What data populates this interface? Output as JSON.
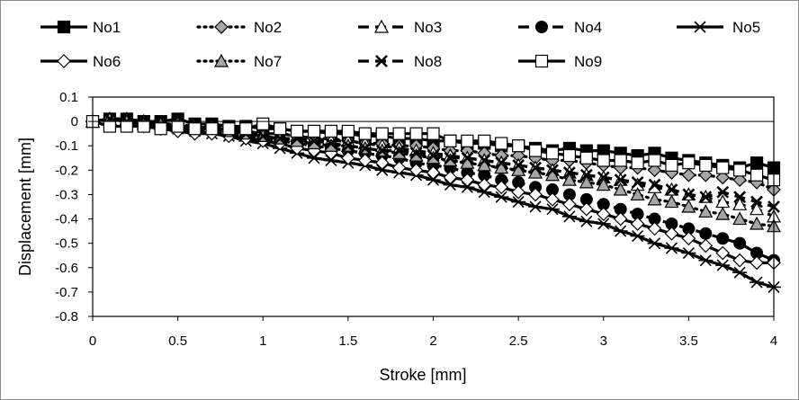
{
  "chart_data": {
    "type": "line",
    "xlabel": "Stroke [mm]",
    "ylabel": "Displacement [mm]",
    "xlim": [
      0,
      4
    ],
    "ylim": [
      -0.8,
      0.1
    ],
    "xticks": [
      "0",
      "0.5",
      "1",
      "1.5",
      "2",
      "2.5",
      "3",
      "3.5",
      "4"
    ],
    "yticks": [
      "0.1",
      "0",
      "-0.1",
      "-0.2",
      "-0.3",
      "-0.4",
      "-0.5",
      "-0.6",
      "-0.7",
      "-0.8"
    ],
    "grid": false,
    "legend_position": "top",
    "series": [
      {
        "name": "No1",
        "marker": "square",
        "fill": "#000000",
        "dash": "solid",
        "x": [
          0,
          0.1,
          0.2,
          0.3,
          0.4,
          0.5,
          0.6,
          0.7,
          0.8,
          0.9,
          1.0,
          1.1,
          1.2,
          1.3,
          1.4,
          1.5,
          1.6,
          1.7,
          1.8,
          1.9,
          2.0,
          2.1,
          2.2,
          2.3,
          2.4,
          2.5,
          2.6,
          2.7,
          2.8,
          2.9,
          3.0,
          3.1,
          3.2,
          3.3,
          3.4,
          3.5,
          3.6,
          3.7,
          3.8,
          3.9,
          4.0
        ],
        "y": [
          0,
          0.01,
          0.01,
          0,
          0,
          0.01,
          -0.01,
          -0.01,
          -0.02,
          -0.02,
          -0.03,
          -0.03,
          -0.04,
          -0.04,
          -0.05,
          -0.05,
          -0.06,
          -0.06,
          -0.07,
          -0.07,
          -0.08,
          -0.08,
          -0.09,
          -0.09,
          -0.1,
          -0.1,
          -0.11,
          -0.12,
          -0.11,
          -0.12,
          -0.12,
          -0.13,
          -0.14,
          -0.13,
          -0.15,
          -0.16,
          -0.17,
          -0.18,
          -0.19,
          -0.17,
          -0.19
        ]
      },
      {
        "name": "No2",
        "marker": "diamond",
        "fill": "#a6a6a6",
        "dash": "dot",
        "x": [
          0,
          0.1,
          0.2,
          0.3,
          0.4,
          0.5,
          0.6,
          0.7,
          0.8,
          0.9,
          1.0,
          1.1,
          1.2,
          1.3,
          1.4,
          1.5,
          1.6,
          1.7,
          1.8,
          1.9,
          2.0,
          2.1,
          2.2,
          2.3,
          2.4,
          2.5,
          2.6,
          2.7,
          2.8,
          2.9,
          3.0,
          3.1,
          3.2,
          3.3,
          3.4,
          3.5,
          3.6,
          3.7,
          3.8,
          3.9,
          4.0
        ],
        "y": [
          0,
          0.01,
          0.01,
          0,
          -0.01,
          -0.01,
          -0.02,
          -0.02,
          -0.03,
          -0.04,
          -0.05,
          -0.05,
          -0.06,
          -0.07,
          -0.07,
          -0.08,
          -0.09,
          -0.09,
          -0.1,
          -0.1,
          -0.11,
          -0.12,
          -0.12,
          -0.13,
          -0.14,
          -0.14,
          -0.15,
          -0.16,
          -0.16,
          -0.17,
          -0.18,
          -0.19,
          -0.19,
          -0.2,
          -0.21,
          -0.22,
          -0.22,
          -0.23,
          -0.24,
          -0.25,
          -0.28
        ]
      },
      {
        "name": "No3",
        "marker": "triangle",
        "fill": "#ffffff",
        "dash": "dash",
        "x": [
          0,
          0.1,
          0.2,
          0.3,
          0.4,
          0.5,
          0.6,
          0.7,
          0.8,
          0.9,
          1.0,
          1.1,
          1.2,
          1.3,
          1.4,
          1.5,
          1.6,
          1.7,
          1.8,
          1.9,
          2.0,
          2.1,
          2.2,
          2.3,
          2.4,
          2.5,
          2.6,
          2.7,
          2.8,
          2.9,
          3.0,
          3.1,
          3.2,
          3.3,
          3.4,
          3.5,
          3.6,
          3.7,
          3.8,
          3.9,
          4.0
        ],
        "y": [
          0,
          0.01,
          0.01,
          0,
          -0.01,
          -0.02,
          -0.02,
          -0.03,
          -0.03,
          -0.04,
          -0.05,
          -0.05,
          -0.06,
          -0.07,
          -0.08,
          -0.08,
          -0.09,
          -0.1,
          -0.11,
          -0.12,
          -0.13,
          -0.14,
          -0.15,
          -0.16,
          -0.17,
          -0.18,
          -0.19,
          -0.2,
          -0.21,
          -0.22,
          -0.23,
          -0.24,
          -0.26,
          -0.27,
          -0.28,
          -0.3,
          -0.31,
          -0.33,
          -0.34,
          -0.36,
          -0.39
        ]
      },
      {
        "name": "No4",
        "marker": "circle",
        "fill": "#000000",
        "dash": "dash",
        "x": [
          0,
          0.1,
          0.2,
          0.3,
          0.4,
          0.5,
          0.6,
          0.7,
          0.8,
          0.9,
          1.0,
          1.1,
          1.2,
          1.3,
          1.4,
          1.5,
          1.6,
          1.7,
          1.8,
          1.9,
          2.0,
          2.1,
          2.2,
          2.3,
          2.4,
          2.5,
          2.6,
          2.7,
          2.8,
          2.9,
          3.0,
          3.1,
          3.2,
          3.3,
          3.4,
          3.5,
          3.6,
          3.7,
          3.8,
          3.9,
          4.0
        ],
        "y": [
          0,
          0.01,
          0,
          -0.01,
          -0.02,
          -0.03,
          -0.03,
          -0.04,
          -0.05,
          -0.06,
          -0.07,
          -0.08,
          -0.09,
          -0.1,
          -0.11,
          -0.12,
          -0.13,
          -0.14,
          -0.15,
          -0.17,
          -0.18,
          -0.19,
          -0.21,
          -0.22,
          -0.24,
          -0.25,
          -0.27,
          -0.28,
          -0.3,
          -0.32,
          -0.34,
          -0.36,
          -0.38,
          -0.4,
          -0.42,
          -0.44,
          -0.46,
          -0.48,
          -0.5,
          -0.54,
          -0.57
        ]
      },
      {
        "name": "No5",
        "marker": "asterisk",
        "fill": "#000000",
        "dash": "solid",
        "x": [
          0,
          0.1,
          0.2,
          0.3,
          0.4,
          0.5,
          0.6,
          0.7,
          0.8,
          0.9,
          1.0,
          1.1,
          1.2,
          1.3,
          1.4,
          1.5,
          1.6,
          1.7,
          1.8,
          1.9,
          2.0,
          2.1,
          2.2,
          2.3,
          2.4,
          2.5,
          2.6,
          2.7,
          2.8,
          2.9,
          3.0,
          3.1,
          3.2,
          3.3,
          3.4,
          3.5,
          3.6,
          3.7,
          3.8,
          3.9,
          4.0
        ],
        "y": [
          0,
          0.01,
          0,
          -0.01,
          -0.02,
          -0.03,
          -0.04,
          -0.05,
          -0.06,
          -0.08,
          -0.09,
          -0.11,
          -0.13,
          -0.15,
          -0.16,
          -0.17,
          -0.18,
          -0.2,
          -0.21,
          -0.22,
          -0.24,
          -0.26,
          -0.27,
          -0.29,
          -0.31,
          -0.33,
          -0.35,
          -0.36,
          -0.39,
          -0.41,
          -0.42,
          -0.45,
          -0.47,
          -0.5,
          -0.52,
          -0.54,
          -0.57,
          -0.59,
          -0.62,
          -0.66,
          -0.68
        ]
      },
      {
        "name": "No6",
        "marker": "diamond",
        "fill": "#ffffff",
        "dash": "solid",
        "x": [
          0,
          0.1,
          0.2,
          0.3,
          0.4,
          0.5,
          0.6,
          0.7,
          0.8,
          0.9,
          1.0,
          1.1,
          1.2,
          1.3,
          1.4,
          1.5,
          1.6,
          1.7,
          1.8,
          1.9,
          2.0,
          2.1,
          2.2,
          2.3,
          2.4,
          2.5,
          2.6,
          2.7,
          2.8,
          2.9,
          3.0,
          3.1,
          3.2,
          3.3,
          3.4,
          3.5,
          3.6,
          3.7,
          3.8,
          3.9,
          4.0
        ],
        "y": [
          0,
          0.01,
          0,
          -0.02,
          -0.03,
          -0.04,
          -0.05,
          -0.05,
          -0.06,
          -0.07,
          -0.08,
          -0.09,
          -0.11,
          -0.12,
          -0.13,
          -0.15,
          -0.16,
          -0.17,
          -0.19,
          -0.2,
          -0.21,
          -0.23,
          -0.24,
          -0.26,
          -0.27,
          -0.29,
          -0.3,
          -0.32,
          -0.34,
          -0.36,
          -0.38,
          -0.4,
          -0.42,
          -0.44,
          -0.46,
          -0.48,
          -0.51,
          -0.54,
          -0.57,
          -0.58,
          -0.58
        ]
      },
      {
        "name": "No7",
        "marker": "triangle",
        "fill": "#a6a6a6",
        "dash": "dot",
        "x": [
          0,
          0.1,
          0.2,
          0.3,
          0.4,
          0.5,
          0.6,
          0.7,
          0.8,
          0.9,
          1.0,
          1.1,
          1.2,
          1.3,
          1.4,
          1.5,
          1.6,
          1.7,
          1.8,
          1.9,
          2.0,
          2.1,
          2.2,
          2.3,
          2.4,
          2.5,
          2.6,
          2.7,
          2.8,
          2.9,
          3.0,
          3.1,
          3.2,
          3.3,
          3.4,
          3.5,
          3.6,
          3.7,
          3.8,
          3.9,
          4.0
        ],
        "y": [
          0,
          0.01,
          0,
          -0.01,
          -0.01,
          -0.02,
          -0.03,
          -0.03,
          -0.04,
          -0.05,
          -0.06,
          -0.07,
          -0.08,
          -0.09,
          -0.1,
          -0.1,
          -0.11,
          -0.12,
          -0.13,
          -0.14,
          -0.15,
          -0.16,
          -0.17,
          -0.18,
          -0.19,
          -0.2,
          -0.21,
          -0.22,
          -0.24,
          -0.25,
          -0.26,
          -0.28,
          -0.3,
          -0.32,
          -0.33,
          -0.35,
          -0.37,
          -0.38,
          -0.4,
          -0.42,
          -0.43
        ]
      },
      {
        "name": "No8",
        "marker": "cross",
        "fill": "#000000",
        "dash": "dash",
        "x": [
          0,
          0.1,
          0.2,
          0.3,
          0.4,
          0.5,
          0.6,
          0.7,
          0.8,
          0.9,
          1.0,
          1.1,
          1.2,
          1.3,
          1.4,
          1.5,
          1.6,
          1.7,
          1.8,
          1.9,
          2.0,
          2.1,
          2.2,
          2.3,
          2.4,
          2.5,
          2.6,
          2.7,
          2.8,
          2.9,
          3.0,
          3.1,
          3.2,
          3.3,
          3.4,
          3.5,
          3.6,
          3.7,
          3.8,
          3.9,
          4.0
        ],
        "y": [
          0,
          0.01,
          0,
          -0.01,
          -0.02,
          -0.02,
          -0.03,
          -0.03,
          -0.04,
          -0.05,
          -0.06,
          -0.07,
          -0.07,
          -0.08,
          -0.09,
          -0.1,
          -0.11,
          -0.12,
          -0.12,
          -0.13,
          -0.14,
          -0.15,
          -0.15,
          -0.16,
          -0.17,
          -0.18,
          -0.19,
          -0.2,
          -0.21,
          -0.22,
          -0.23,
          -0.24,
          -0.25,
          -0.26,
          -0.28,
          -0.3,
          -0.31,
          -0.29,
          -0.31,
          -0.33,
          -0.35
        ]
      },
      {
        "name": "No9",
        "marker": "square",
        "fill": "#ffffff",
        "dash": "solid",
        "x": [
          0,
          0.1,
          0.2,
          0.3,
          0.4,
          0.5,
          0.6,
          0.7,
          0.8,
          0.9,
          1.0,
          1.1,
          1.2,
          1.3,
          1.4,
          1.5,
          1.6,
          1.7,
          1.8,
          1.9,
          2.0,
          2.1,
          2.2,
          2.3,
          2.4,
          2.5,
          2.6,
          2.7,
          2.8,
          2.9,
          3.0,
          3.1,
          3.2,
          3.3,
          3.4,
          3.5,
          3.6,
          3.7,
          3.8,
          3.9,
          4.0
        ],
        "y": [
          0,
          -0.02,
          -0.02,
          -0.02,
          -0.03,
          -0.02,
          -0.03,
          -0.03,
          -0.03,
          -0.03,
          -0.01,
          -0.03,
          -0.04,
          -0.04,
          -0.04,
          -0.04,
          -0.05,
          -0.05,
          -0.05,
          -0.05,
          -0.05,
          -0.08,
          -0.08,
          -0.08,
          -0.09,
          -0.1,
          -0.12,
          -0.13,
          -0.14,
          -0.15,
          -0.16,
          -0.16,
          -0.17,
          -0.16,
          -0.18,
          -0.17,
          -0.18,
          -0.19,
          -0.2,
          -0.22,
          -0.24
        ]
      }
    ]
  }
}
